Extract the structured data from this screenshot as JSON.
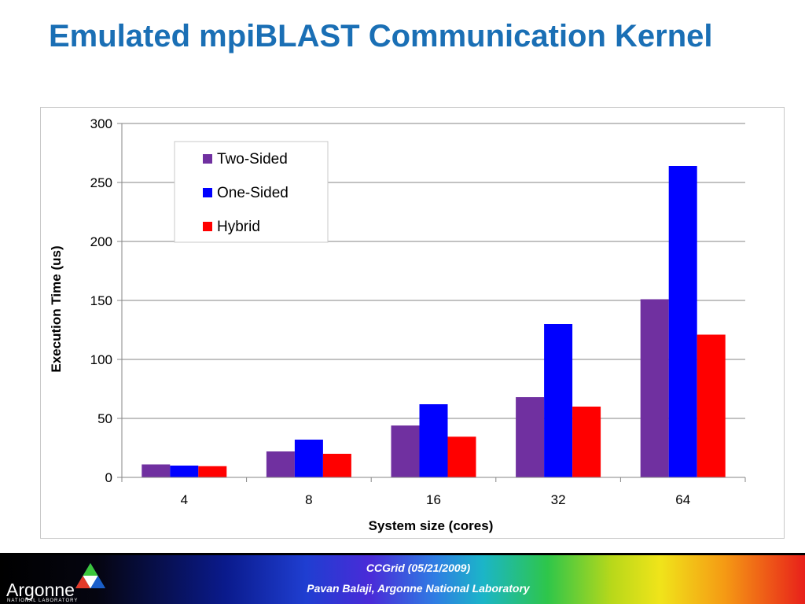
{
  "slide": {
    "title": "Emulated mpiBLAST Communication Kernel"
  },
  "footer": {
    "logo_text": "Argonne",
    "logo_subtext": "NATIONAL LABORATORY",
    "line1": "CCGrid (05/21/2009)",
    "line2": "Pavan Balaji, Argonne National Laboratory"
  },
  "colors": {
    "title": "#1a6fb5",
    "two_sided": "#7030a0",
    "one_sided": "#0000ff",
    "hybrid": "#ff0000"
  },
  "chart_data": {
    "type": "bar",
    "categories": [
      "4",
      "8",
      "16",
      "32",
      "64"
    ],
    "series": [
      {
        "name": "Two-Sided",
        "values": [
          11,
          22,
          44,
          68,
          151
        ],
        "color": "#7030a0"
      },
      {
        "name": "One-Sided",
        "values": [
          10,
          32,
          62,
          130,
          264
        ],
        "color": "#0000ff"
      },
      {
        "name": "Hybrid",
        "values": [
          9.5,
          20,
          34.5,
          60,
          121
        ],
        "color": "#ff0000"
      }
    ],
    "xlabel": "System size (cores)",
    "ylabel": "Execution Time (us)",
    "ylim": [
      0,
      300
    ],
    "yticks": [
      0,
      50,
      100,
      150,
      200,
      250,
      300
    ],
    "grid": true,
    "legend_position": "top-left"
  }
}
